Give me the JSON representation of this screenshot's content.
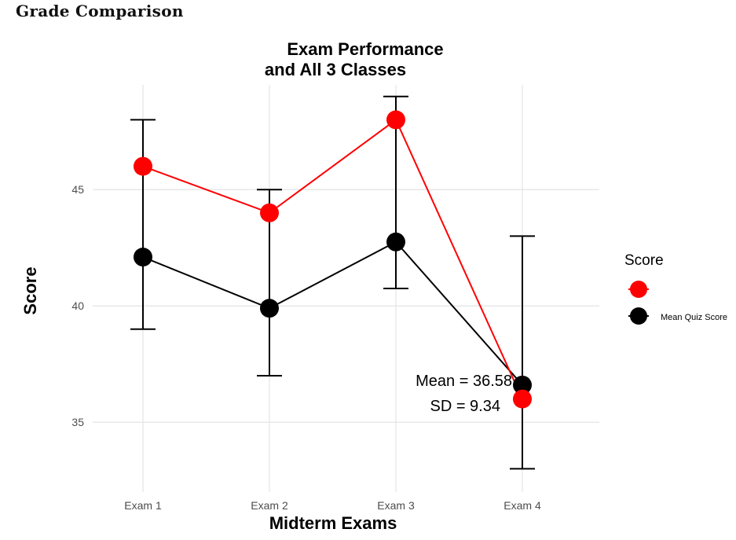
{
  "page": {
    "heading": "Grade Comparison"
  },
  "chart_data": {
    "type": "line",
    "title_lines": [
      "Exam Performance",
      "and All 3 Classes"
    ],
    "xlabel": "Midterm Exams",
    "ylabel": "Score",
    "categories": [
      "Exam 1",
      "Exam 2",
      "Exam 3",
      "Exam 4"
    ],
    "ylim": [
      32,
      49.5
    ],
    "yticks": [
      35,
      40,
      45
    ],
    "grid": true,
    "series": [
      {
        "name": "",
        "color": "#ff0000",
        "values": [
          46,
          44,
          48,
          36
        ],
        "error_bars": false
      },
      {
        "name": "Mean Quiz Score",
        "color": "#000000",
        "values": [
          42.1,
          39.9,
          42.75,
          36.6
        ],
        "error_low": [
          39,
          37,
          40.75,
          33
        ],
        "error_high": [
          48,
          45,
          49,
          43
        ]
      }
    ],
    "legend": {
      "title": "Score",
      "position": "right"
    },
    "annotations": [
      "Mean = 36.58",
      "SD = 9.34"
    ]
  }
}
